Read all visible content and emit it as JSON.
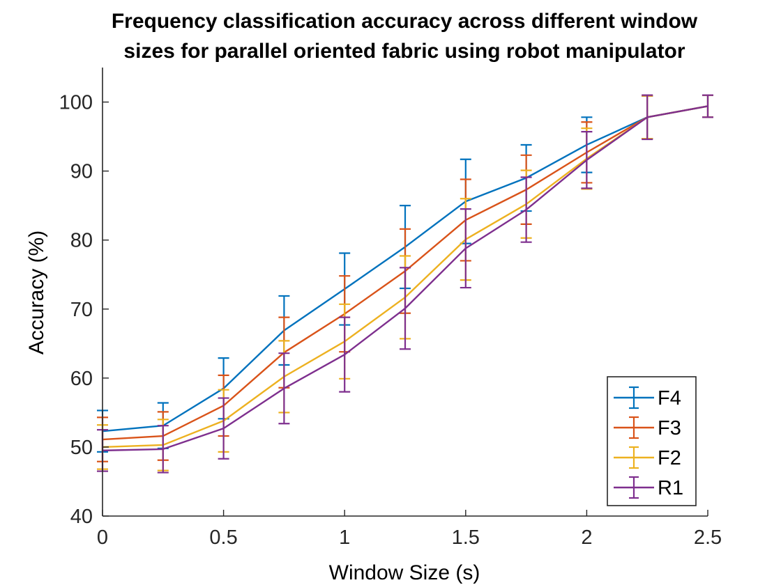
{
  "chart_data": {
    "type": "line",
    "title_lines": [
      "Frequency classification accuracy across different window",
      "sizes for parallel oriented fabric using robot manipulator"
    ],
    "xlabel": "Window Size (s)",
    "ylabel": "Accuracy (%)",
    "xlim": [
      0,
      2.5
    ],
    "ylim": [
      40,
      105
    ],
    "x_ticks": [
      0,
      0.5,
      1,
      1.5,
      2,
      2.5
    ],
    "x_tick_labels": [
      "0",
      "0.5",
      "1",
      "1.5",
      "2",
      "2.5"
    ],
    "y_ticks": [
      40,
      50,
      60,
      70,
      80,
      90,
      100
    ],
    "y_tick_labels": [
      "40",
      "50",
      "60",
      "70",
      "80",
      "90",
      "100"
    ],
    "grid": false,
    "legend_position": "bottom-right",
    "error_bars": true,
    "x": [
      0.0,
      0.25,
      0.5,
      0.75,
      1.0,
      1.25,
      1.5,
      1.75,
      2.0,
      2.25,
      2.5
    ],
    "series": [
      {
        "name": "F4",
        "color": "#0072BD",
        "values": [
          52.3,
          53.1,
          58.5,
          66.9,
          72.9,
          79.0,
          85.6,
          89.0,
          93.8,
          97.8,
          99.4
        ],
        "errors": [
          3.0,
          3.3,
          4.4,
          5.0,
          5.2,
          6.0,
          6.1,
          4.8,
          4.0,
          3.1,
          1.6
        ]
      },
      {
        "name": "F3",
        "color": "#D95319",
        "values": [
          51.1,
          51.6,
          56.0,
          63.7,
          69.3,
          75.5,
          82.9,
          87.3,
          92.7,
          97.8,
          99.4
        ],
        "errors": [
          3.2,
          3.5,
          4.4,
          5.1,
          5.5,
          6.1,
          5.9,
          5.0,
          4.4,
          3.1,
          1.6
        ]
      },
      {
        "name": "F2",
        "color": "#EDB120",
        "values": [
          50.0,
          50.3,
          53.8,
          60.2,
          65.3,
          71.7,
          80.1,
          85.2,
          91.8,
          97.8,
          99.4
        ],
        "errors": [
          3.2,
          3.7,
          4.5,
          5.2,
          5.4,
          6.0,
          5.9,
          4.9,
          4.4,
          3.1,
          1.6
        ]
      },
      {
        "name": "R1",
        "color": "#7E2F8E",
        "values": [
          49.5,
          49.7,
          52.7,
          58.5,
          63.4,
          70.1,
          78.8,
          84.4,
          91.6,
          97.8,
          99.4
        ],
        "errors": [
          3.0,
          3.4,
          4.4,
          5.1,
          5.4,
          5.9,
          5.7,
          4.7,
          4.1,
          3.2,
          1.6
        ]
      }
    ]
  }
}
